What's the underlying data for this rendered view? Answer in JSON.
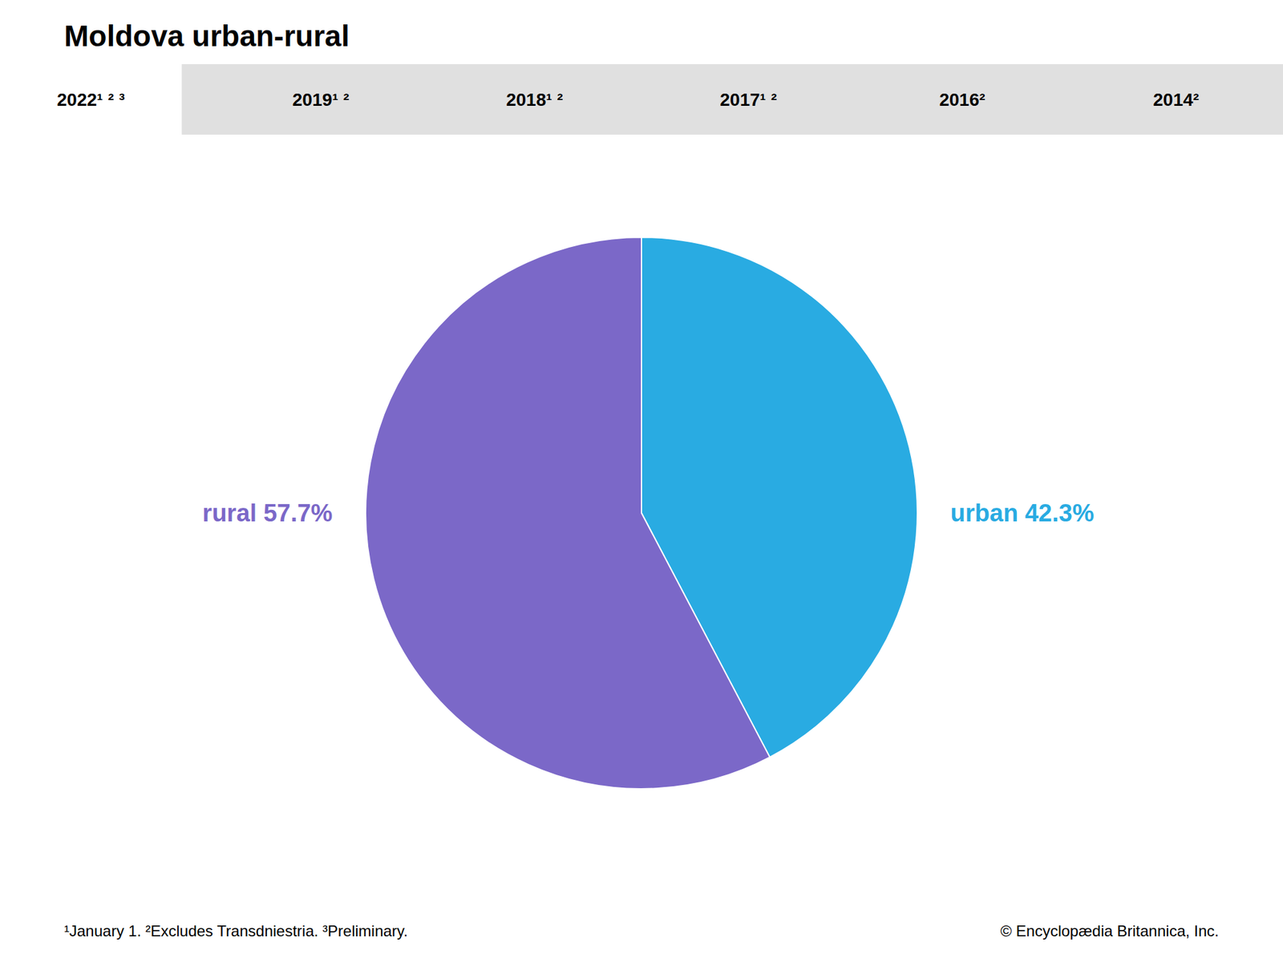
{
  "chart_data": {
    "type": "pie",
    "title": "Moldova urban-rural",
    "categories": [
      "urban 42.3%",
      "rural 57.7%"
    ],
    "values": [
      42.3,
      57.7
    ],
    "colors": [
      "#29ABE2",
      "#7B68C8"
    ],
    "annotations": [
      "2022¹ ² ³",
      "2019¹ ²",
      "2018¹ ²",
      "2017¹ ²",
      "2016²",
      "2014²",
      "¹January 1. ²Excludes Transdniestria.  ³Preliminary.",
      "© Encyclopædia Britannica, Inc."
    ]
  }
}
